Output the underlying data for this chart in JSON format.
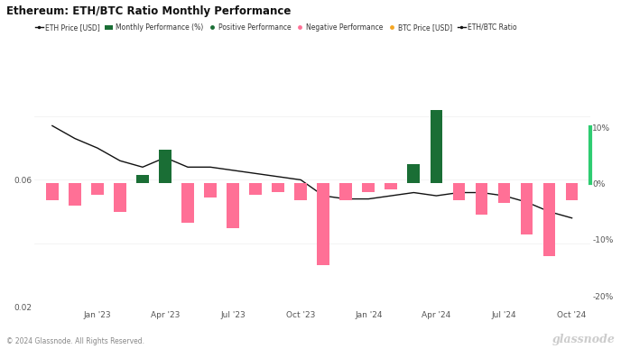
{
  "title": "Ethereum: ETH/BTC Ratio Monthly Performance",
  "background_color": "#ffffff",
  "plot_bg_color": "#ffffff",
  "left_ylim": [
    0.02,
    0.088
  ],
  "right_ylim": [
    -22,
    16.5
  ],
  "right_yticks": [
    -20,
    -10,
    0,
    10
  ],
  "right_yticklabels": [
    "-20%",
    "-10%",
    "0%",
    "10%"
  ],
  "left_yticks": [
    0.02,
    0.04,
    0.06,
    0.08
  ],
  "left_yticklabels": [
    "0.02",
    "",
    "0.06",
    ""
  ],
  "month_indices": [
    0,
    1,
    2,
    3,
    4,
    5,
    6,
    7,
    8,
    9,
    10,
    11,
    12,
    13,
    14,
    15,
    16,
    17,
    18,
    19,
    20,
    21,
    22,
    23
  ],
  "xtick_positions": [
    2,
    5,
    8,
    11,
    14,
    17,
    20,
    23
  ],
  "xtick_labels": [
    "Jan '23",
    "Apr '23",
    "Jul '23",
    "Oct '23",
    "Jan '24",
    "Apr '24",
    "Jul '24",
    "Oct '24"
  ],
  "eth_btc_ratio": [
    0.077,
    0.073,
    0.07,
    0.066,
    0.064,
    0.067,
    0.064,
    0.064,
    0.063,
    0.062,
    0.061,
    0.06,
    0.055,
    0.054,
    0.054,
    0.055,
    0.056,
    0.055,
    0.056,
    0.056,
    0.055,
    0.053,
    0.05,
    0.048
  ],
  "monthly_perf": [
    -3.0,
    -4.0,
    -2.0,
    -5.0,
    1.5,
    6.0,
    -7.0,
    -2.5,
    -8.0,
    -2.0,
    -1.5,
    -3.0,
    -14.5,
    -3.0,
    -1.5,
    -1.0,
    3.5,
    13.0,
    -3.0,
    -5.5,
    -3.5,
    -9.0,
    -13.0,
    -3.0
  ],
  "positive_color": "#1a6e35",
  "negative_color": "#ff7096",
  "line_color": "#111111",
  "glassnode_text": "© 2024 Glassnode. All Rights Reserved.",
  "right_axis_color": "#2ecc71",
  "font_color": "#555555",
  "grid_color": "#eeeeee",
  "title_fontsize": 8.5,
  "tick_fontsize": 6.5,
  "legend_fontsize": 5.5
}
